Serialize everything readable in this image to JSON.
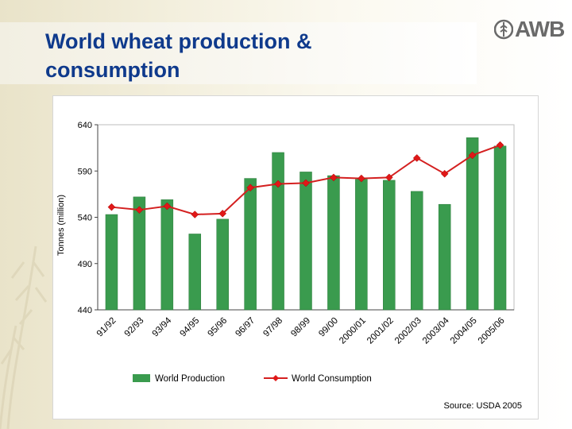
{
  "slide": {
    "title_line1": "World wheat production &",
    "title_line2": "consumption",
    "logo_text": "AWB",
    "source": "Source:  USDA 2005"
  },
  "colors": {
    "title": "#0f3a8c",
    "bar": "#3a9b4e",
    "line": "#d42020",
    "marker": "#e01818"
  },
  "chart_data": {
    "type": "bar",
    "title": "",
    "xlabel": "",
    "ylabel": "Tonnes (million)",
    "ylim": [
      440,
      640
    ],
    "yticks": [
      440,
      490,
      540,
      590,
      640
    ],
    "grid": false,
    "legend_placement": "bottom",
    "categories": [
      "91/92",
      "92/93",
      "93/94",
      "94/95",
      "95/96",
      "96/97",
      "97/98",
      "98/99",
      "99/00",
      "2000/01",
      "2001/02",
      "2002/03",
      "2003/04",
      "2004/05",
      "2005/06"
    ],
    "series": [
      {
        "name": "World Production",
        "type": "bar",
        "values": [
          543,
          562,
          559,
          522,
          538,
          582,
          610,
          589,
          585,
          581,
          580,
          568,
          554,
          626,
          617
        ]
      },
      {
        "name": "World Consumption",
        "type": "line",
        "values": [
          551,
          548,
          552,
          543,
          544,
          572,
          576,
          577,
          583,
          582,
          583,
          604,
          587,
          607,
          618
        ]
      }
    ]
  }
}
